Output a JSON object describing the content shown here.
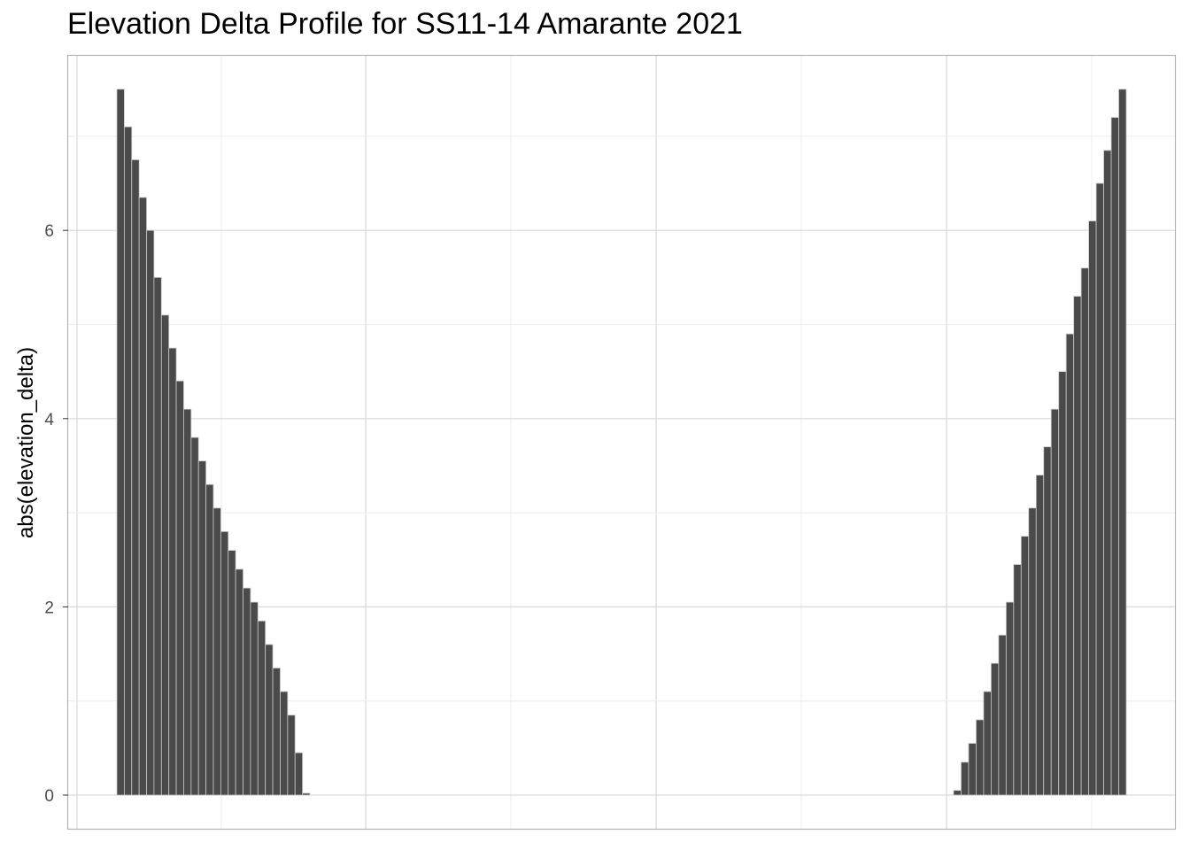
{
  "chart_data": {
    "type": "bar",
    "title": "Elevation Delta Profile for SS11-14 Amarante 2021",
    "xlabel": "",
    "ylabel": "abs(elevation_delta)",
    "ylim": [
      -0.5,
      7.75
    ],
    "y_ticks": [
      0,
      2,
      4,
      6
    ],
    "y_tick_labels": [
      "0",
      "2",
      "4",
      "6"
    ],
    "x_tick_labels": [],
    "grid": true,
    "bar_color": "#4a4a4a",
    "separator_color": "#c8c8c8",
    "panel_border_color": "#b3b3b3",
    "grid_major_color": "#d9d9d9",
    "grid_minor_color": "#ececec",
    "series": [
      {
        "values": [
          7.5,
          7.1,
          6.75,
          6.35,
          6.0,
          5.5,
          5.1,
          4.75,
          4.4,
          4.1,
          3.8,
          3.55,
          3.3,
          3.05,
          2.8,
          2.6,
          2.4,
          2.2,
          2.05,
          1.85,
          1.6,
          1.35,
          1.1,
          0.85,
          0.45,
          0.02
        ]
      },
      {
        "values": [
          0.05,
          0.35,
          0.55,
          0.8,
          1.1,
          1.4,
          1.7,
          2.05,
          2.45,
          2.75,
          3.05,
          3.4,
          3.7,
          4.1,
          4.5,
          4.9,
          5.3,
          5.6,
          6.1,
          6.5,
          6.85,
          7.2,
          7.5
        ]
      }
    ]
  }
}
